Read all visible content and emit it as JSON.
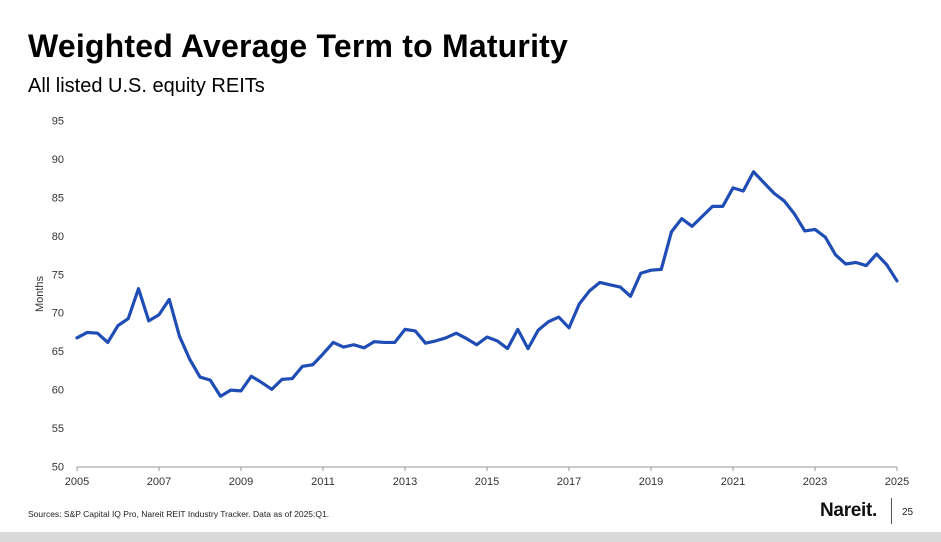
{
  "slide": {
    "title": "Weighted Average Term to Maturity",
    "subtitle": "All listed U.S. equity REITs",
    "source": "Sources: S&P Capital IQ Pro, Nareit REIT Industry Tracker. Data as of 2025:Q1.",
    "logo": "Nareit.",
    "page_number": "25"
  },
  "chart_data": {
    "type": "line",
    "ylabel": "Months",
    "xlabel": "",
    "ylim": [
      50,
      95
    ],
    "yticks": [
      50,
      55,
      60,
      65,
      70,
      75,
      80,
      85,
      90,
      95
    ],
    "xlim": [
      2005,
      2025
    ],
    "xticks": [
      2005,
      2007,
      2009,
      2011,
      2013,
      2015,
      2017,
      2019,
      2021,
      2023,
      2025
    ],
    "grid": false,
    "legend": "none",
    "line_color": "#1f4db5",
    "series": [
      {
        "x": [
          2005.0,
          2005.25,
          2005.5,
          2005.75,
          2006.0,
          2006.25,
          2006.5,
          2006.75,
          2007.0,
          2007.25,
          2007.5,
          2007.75,
          2008.0,
          2008.25,
          2008.5,
          2008.75,
          2009.0,
          2009.25,
          2009.5,
          2009.75,
          2010.0,
          2010.25,
          2010.5,
          2010.75,
          2011.0,
          2011.25,
          2011.5,
          2011.75,
          2012.0,
          2012.25,
          2012.5,
          2012.75,
          2013.0,
          2013.25,
          2013.5,
          2013.75,
          2014.0,
          2014.25,
          2014.5,
          2014.75,
          2015.0,
          2015.25,
          2015.5,
          2015.75,
          2016.0,
          2016.25,
          2016.5,
          2016.75,
          2017.0,
          2017.25,
          2017.5,
          2017.75,
          2018.0,
          2018.25,
          2018.5,
          2018.75,
          2019.0,
          2019.25,
          2019.5,
          2019.75,
          2020.0,
          2020.25,
          2020.5,
          2020.75,
          2021.0,
          2021.25,
          2021.5,
          2021.75,
          2022.0,
          2022.25,
          2022.5,
          2022.75,
          2023.0,
          2023.25,
          2023.5,
          2023.75,
          2024.0,
          2024.25,
          2024.5,
          2024.75,
          2025.0
        ],
        "values": [
          66.8,
          67.5,
          67.4,
          66.2,
          68.4,
          69.3,
          73.2,
          69.0,
          69.8,
          71.8,
          67.0,
          64.0,
          61.7,
          61.3,
          59.2,
          60.0,
          59.9,
          61.8,
          61.0,
          60.1,
          61.4,
          61.5,
          63.1,
          63.3,
          64.7,
          66.2,
          65.6,
          65.9,
          65.5,
          66.3,
          66.2,
          66.2,
          67.9,
          67.7,
          66.1,
          66.4,
          66.8,
          67.4,
          66.7,
          65.9,
          66.9,
          66.4,
          65.4,
          67.9,
          65.4,
          67.8,
          68.9,
          69.5,
          68.1,
          71.2,
          72.9,
          74.0,
          73.7,
          73.4,
          72.2,
          75.2,
          75.6,
          75.7,
          80.6,
          82.3,
          81.3,
          82.6,
          83.9,
          83.9,
          86.3,
          85.9,
          88.4,
          87.0,
          85.6,
          84.6,
          82.9,
          80.7,
          80.9,
          79.9,
          77.6,
          76.4,
          76.6,
          76.2,
          77.7,
          76.3,
          74.2
        ]
      }
    ]
  }
}
